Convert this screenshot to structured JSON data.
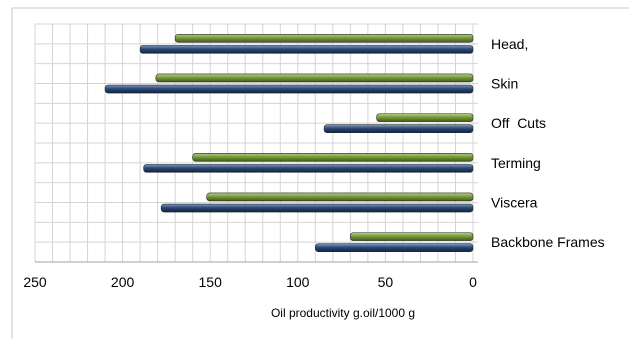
{
  "chart_data": {
    "type": "bar",
    "orientation": "horizontal",
    "x_axis_reversed": true,
    "categories": [
      "Head,",
      "Skin",
      "Off  Cuts",
      "Terming",
      "Viscera",
      "Backbone Frames"
    ],
    "series": [
      {
        "values": [
          170,
          181,
          55,
          160,
          152,
          70
        ],
        "color": "#7a9a3c"
      },
      {
        "values": [
          190,
          210,
          85,
          188,
          178,
          90
        ],
        "color": "#2c4a75"
      }
    ],
    "xlim": [
      0,
      250
    ],
    "x_ticks": [
      250,
      200,
      150,
      100,
      50,
      0
    ],
    "xlabel": "Oil  productivity g.oil/1000  g",
    "grid": true
  }
}
